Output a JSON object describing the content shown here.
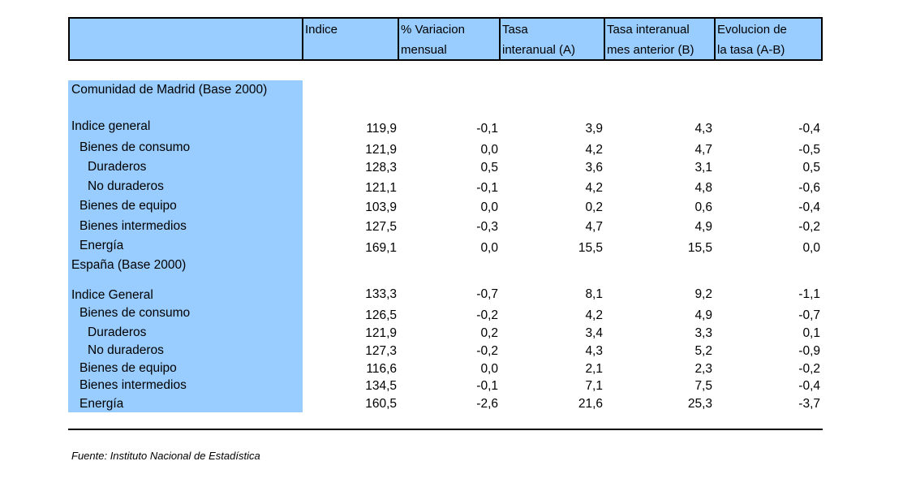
{
  "headers": [
    {
      "line1": "Indice",
      "line2": ""
    },
    {
      "line1": "% Variacion",
      "line2": "mensual"
    },
    {
      "line1": "Tasa",
      "line2": "interanual (A)"
    },
    {
      "line1": "Tasa interanual",
      "line2": "mes anterior (B)"
    },
    {
      "line1": "Evolucion de",
      "line2": "la tasa (A-B)"
    }
  ],
  "sections": [
    {
      "title": "Comunidad de Madrid (Base 2000)",
      "rows": [
        {
          "label": "Indice general",
          "values": [
            "119,9",
            "-0,1",
            "3,9",
            "4,3",
            "-0,4"
          ]
        },
        {
          "label": "Bienes de consumo",
          "values": [
            "121,9",
            "0,0",
            "4,2",
            "4,7",
            "-0,5"
          ]
        },
        {
          "label": "Duraderos",
          "values": [
            "128,3",
            "0,5",
            "3,6",
            "3,1",
            "0,5"
          ]
        },
        {
          "label": "No duraderos",
          "values": [
            "121,1",
            "-0,1",
            "4,2",
            "4,8",
            "-0,6"
          ]
        },
        {
          "label": "Bienes de equipo",
          "values": [
            "103,9",
            "0,0",
            "0,2",
            "0,6",
            "-0,4"
          ]
        },
        {
          "label": "Bienes intermedios",
          "values": [
            "127,5",
            "-0,3",
            "4,7",
            "4,9",
            "-0,2"
          ]
        },
        {
          "label": "Energía",
          "values": [
            "169,1",
            "0,0",
            "15,5",
            "15,5",
            "0,0"
          ]
        }
      ]
    },
    {
      "title": "España (Base 2000)",
      "rows": [
        {
          "label": "Indice General",
          "values": [
            "133,3",
            "-0,7",
            "8,1",
            "9,2",
            "-1,1"
          ]
        },
        {
          "label": "Bienes de consumo",
          "values": [
            "126,5",
            "-0,2",
            "4,2",
            "4,9",
            "-0,7"
          ]
        },
        {
          "label": "Duraderos",
          "values": [
            "121,9",
            "0,2",
            "3,4",
            "3,3",
            "0,1"
          ]
        },
        {
          "label": "No duraderos",
          "values": [
            "127,3",
            "-0,2",
            "4,3",
            "5,2",
            "-0,9"
          ]
        },
        {
          "label": "Bienes de equipo",
          "values": [
            "116,6",
            "0,0",
            "2,1",
            "2,3",
            "-0,2"
          ]
        },
        {
          "label": "Bienes intermedios",
          "values": [
            "134,5",
            "-0,1",
            "7,1",
            "7,5",
            "-0,4"
          ]
        },
        {
          "label": "Energía",
          "values": [
            "160,5",
            "-2,6",
            "21,6",
            "25,3",
            "-3,7"
          ]
        }
      ]
    }
  ],
  "source": "Fuente: Instituto Nacional de Estadística",
  "colors": {
    "highlight": "#99ccff"
  }
}
